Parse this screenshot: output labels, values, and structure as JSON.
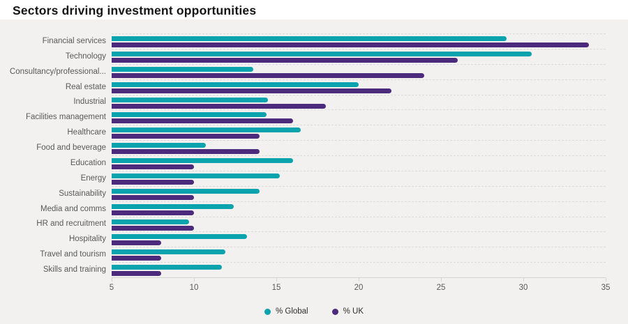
{
  "page": {
    "title": "Sectors driving investment opportunities"
  },
  "chart_data": {
    "type": "bar",
    "orientation": "horizontal",
    "title": "Sectors driving investment opportunities",
    "categories": [
      "Financial services",
      "Technology",
      "Consultancy/professional...",
      "Real estate",
      "Industrial",
      "Facilities management",
      "Healthcare",
      "Food and beverage",
      "Education",
      "Energy",
      "Sustainability",
      "Media and comms",
      "HR and recruitment",
      "Hospitality",
      "Travel and tourism",
      "Skills and training"
    ],
    "series": [
      {
        "name": "% Global",
        "color": "#0aa3ae",
        "values": [
          29,
          30.5,
          13.6,
          20,
          14.5,
          14.4,
          16.5,
          10.7,
          16,
          15.2,
          14,
          12.4,
          9.7,
          13.2,
          11.9,
          11.7
        ]
      },
      {
        "name": "% UK",
        "color": "#4c2a7c",
        "values": [
          34,
          26,
          24,
          22,
          18,
          16,
          14,
          14,
          10,
          10,
          10,
          10,
          10,
          8,
          8,
          8
        ]
      }
    ],
    "xlim": [
      5,
      35
    ],
    "xticks": [
      5,
      10,
      15,
      20,
      25,
      30,
      35
    ],
    "grid": "horizontal-dashed",
    "legend_position": "bottom-center",
    "plot_background": "#f2f1ef",
    "gridline_color": "#dcdbd8",
    "axis_line_color": "#d6d4d0",
    "label_color": "#58595b"
  }
}
